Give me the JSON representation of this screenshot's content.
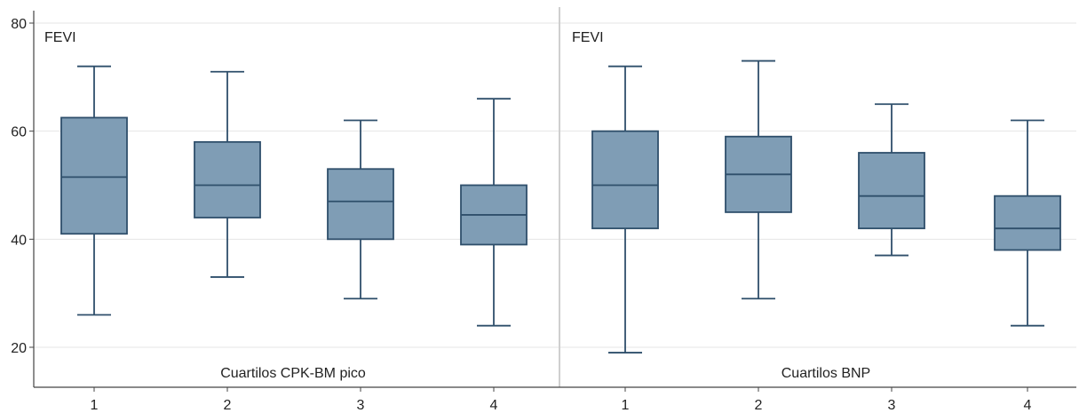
{
  "chart_data": [
    {
      "type": "box",
      "panel_label": "FEVI",
      "xlabel": "Cuartilos CPK-BM pico",
      "categories": [
        "1",
        "2",
        "3",
        "4"
      ],
      "ylim": [
        14,
        82
      ],
      "yticks": [
        20,
        40,
        60,
        80
      ],
      "grid": true,
      "boxes": [
        {
          "category": "1",
          "whisker_low": 26,
          "q1": 41,
          "median": 51.5,
          "q3": 62.5,
          "whisker_high": 72
        },
        {
          "category": "2",
          "whisker_low": 33,
          "q1": 44,
          "median": 50,
          "q3": 58,
          "whisker_high": 71
        },
        {
          "category": "3",
          "whisker_low": 29,
          "q1": 40,
          "median": 47,
          "q3": 53,
          "whisker_high": 62
        },
        {
          "category": "4",
          "whisker_low": 24,
          "q1": 39,
          "median": 44.5,
          "q3": 50,
          "whisker_high": 66
        }
      ]
    },
    {
      "type": "box",
      "panel_label": "FEVI",
      "xlabel": "Cuartilos BNP",
      "categories": [
        "1",
        "2",
        "3",
        "4"
      ],
      "ylim": [
        14,
        82
      ],
      "yticks": [
        20,
        40,
        60,
        80
      ],
      "grid": true,
      "boxes": [
        {
          "category": "1",
          "whisker_low": 19,
          "q1": 42,
          "median": 50,
          "q3": 60,
          "whisker_high": 72
        },
        {
          "category": "2",
          "whisker_low": 29,
          "q1": 45,
          "median": 52,
          "q3": 59,
          "whisker_high": 73
        },
        {
          "category": "3",
          "whisker_low": 37,
          "q1": 42,
          "median": 48,
          "q3": 56,
          "whisker_high": 65
        },
        {
          "category": "4",
          "whisker_low": 24,
          "q1": 38,
          "median": 42,
          "q3": 48,
          "whisker_high": 62
        }
      ]
    }
  ],
  "colors": {
    "box_fill": "#7f9db5",
    "box_stroke": "#2f4f6b",
    "grid": "#e6e6e6",
    "axis": "#444444",
    "panel_divider": "#cfcfcf"
  }
}
